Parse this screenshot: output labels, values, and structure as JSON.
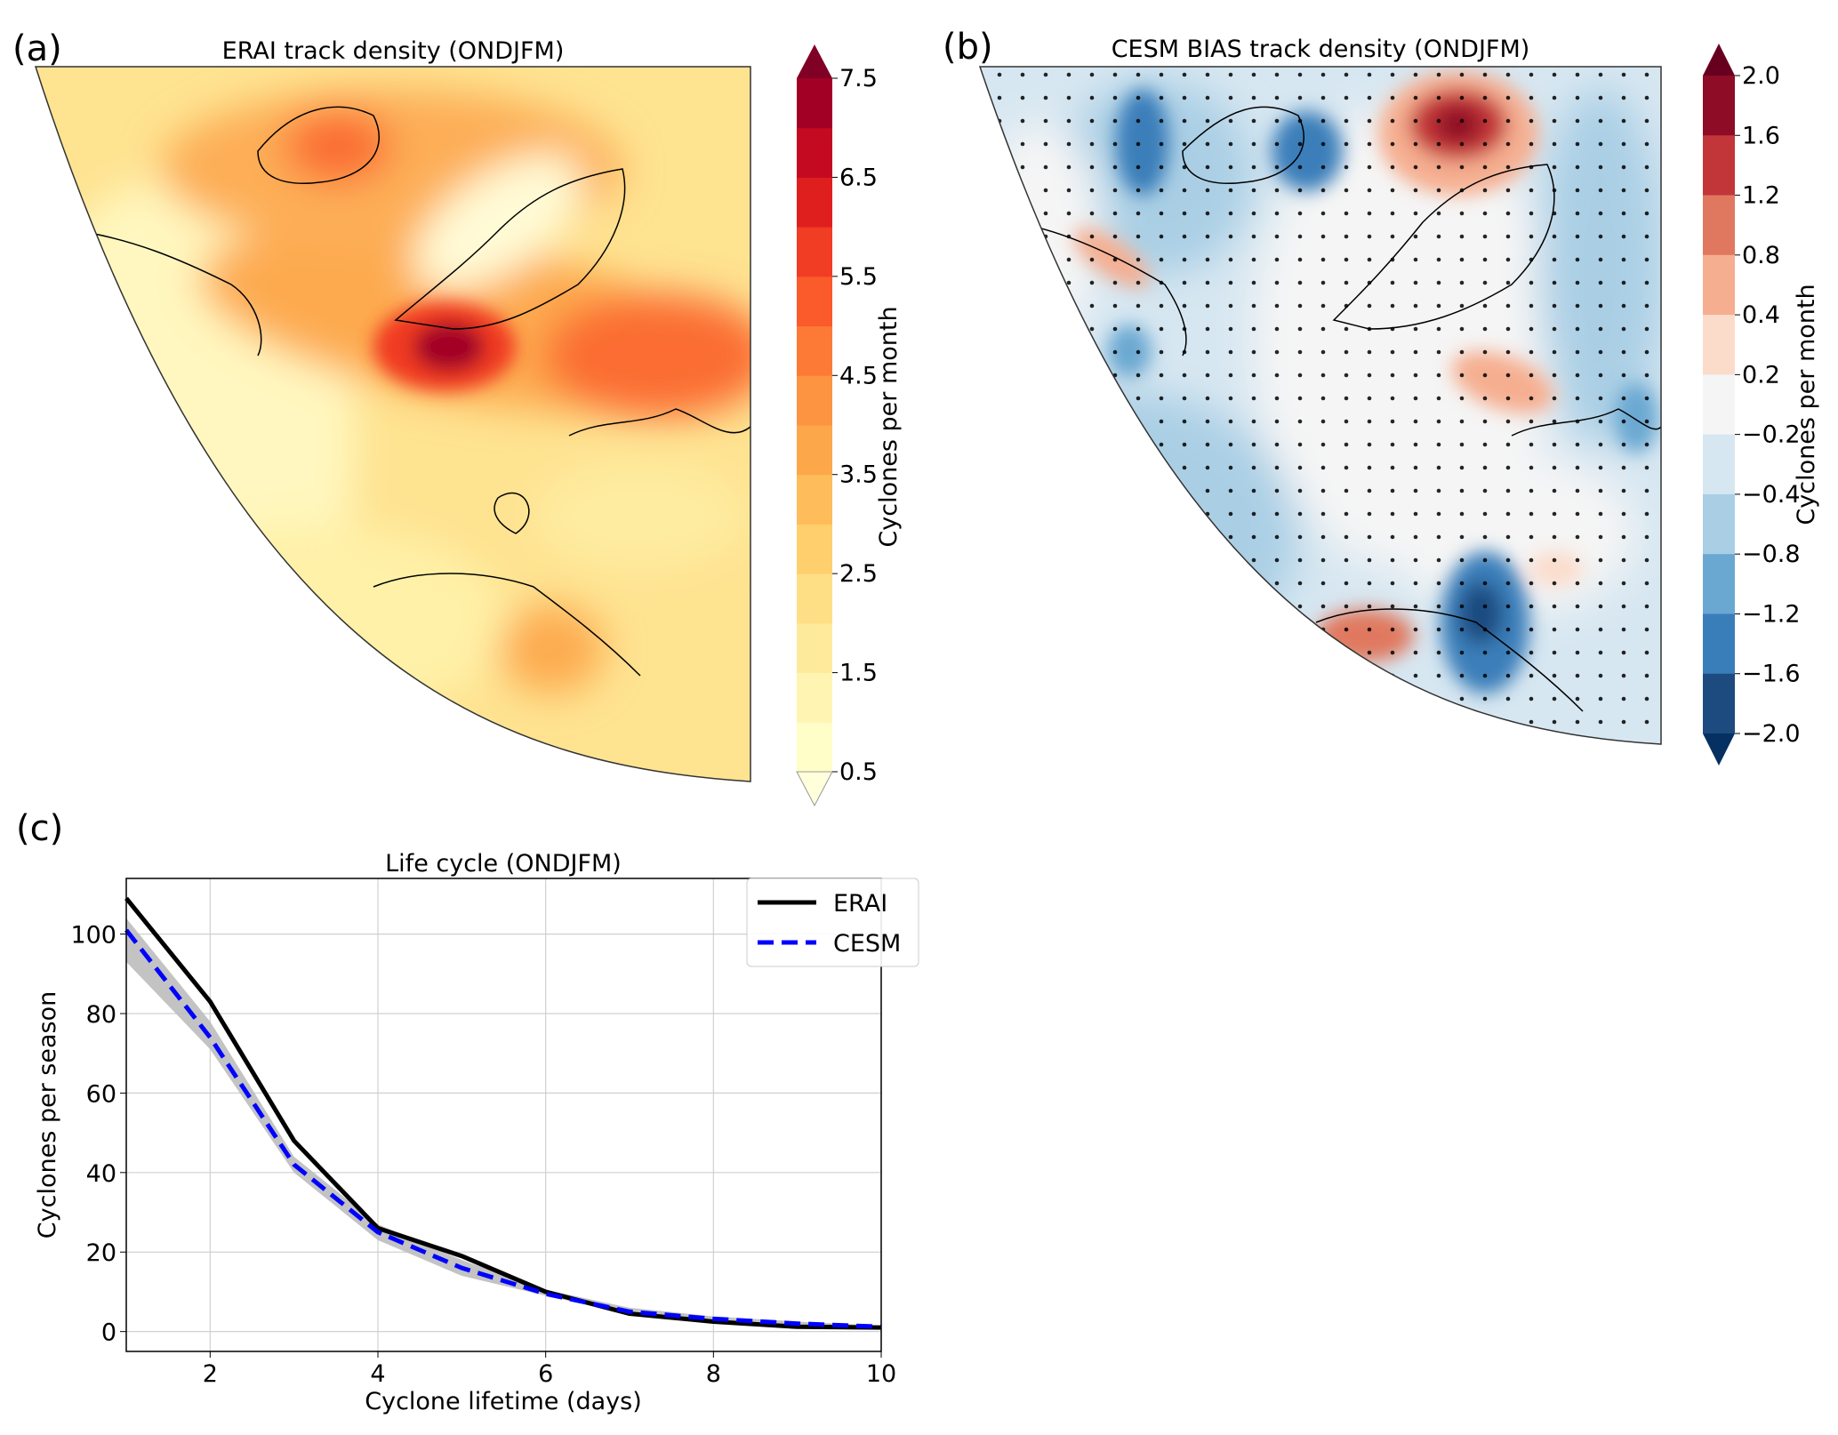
{
  "panel_a": {
    "label": "(a)",
    "title": "ERAI track density (ONDJFM)",
    "colorbar": {
      "label": "Cyclones per month",
      "ticks": [
        "7.5",
        "6.5",
        "5.5",
        "4.5",
        "3.5",
        "2.5",
        "1.5",
        "0.5"
      ],
      "colors_bottom_to_top": [
        "#fffdc8",
        "#fff4b2",
        "#feea9b",
        "#fedf86",
        "#fecf6c",
        "#febc5a",
        "#fda74b",
        "#fd9442",
        "#fc7a35",
        "#fb5a2b",
        "#f13d24",
        "#df1f1e",
        "#c40a21",
        "#a30026"
      ],
      "extend_top": "#800026",
      "extend_bottom": "#ffffdc"
    }
  },
  "panel_b": {
    "label": "(b)",
    "title": "CESM BIAS track density (ONDJFM)",
    "colorbar": {
      "label": "Cyclones per month",
      "ticks": [
        "2.0",
        "1.6",
        "1.2",
        "0.8",
        "0.4",
        "0.2",
        "−0.2",
        "−0.4",
        "−0.8",
        "−1.2",
        "−1.6",
        "−2.0"
      ],
      "colors_top_to_bottom": [
        "#8e0c25",
        "#c23639",
        "#e0785f",
        "#f5ae90",
        "#fbdccb",
        "#f5f5f5",
        "#d7e7f1",
        "#aacfe5",
        "#6ba8d1",
        "#3a7eb9",
        "#1d4b80"
      ],
      "extend_top": "#67001f",
      "extend_bottom": "#053061"
    }
  },
  "panel_c": {
    "label": "(c)"
  },
  "chart_data": {
    "type": "line",
    "title": "Life cycle (ONDJFM)",
    "xlabel": "Cyclone lifetime (days)",
    "ylabel": "Cyclones per season",
    "xlim": [
      1,
      10
    ],
    "ylim": [
      -5,
      114
    ],
    "xticks": [
      2,
      4,
      6,
      8,
      10
    ],
    "yticks": [
      0,
      20,
      40,
      60,
      80,
      100
    ],
    "grid": true,
    "legend_placement": "top-right",
    "x": [
      1,
      2,
      3,
      4,
      5,
      6,
      7,
      8,
      9,
      10
    ],
    "series": [
      {
        "name": "ERAI",
        "color": "#000000",
        "style": "solid",
        "values": [
          109,
          83,
          48,
          26,
          19,
          10,
          4.5,
          2.5,
          1.2,
          1.0
        ]
      },
      {
        "name": "CESM",
        "color": "#0000ff",
        "style": "dashed",
        "values": [
          101,
          74,
          42,
          25,
          16,
          9.5,
          5,
          3.2,
          2.0,
          1.2
        ]
      }
    ],
    "band": {
      "color": "#bdbdbd",
      "lower": [
        93,
        71,
        40,
        23,
        14,
        9,
        4.5,
        2.8,
        1.5,
        0.8
      ],
      "upper": [
        104,
        78,
        44,
        27,
        18,
        10.5,
        6,
        3.8,
        2.5,
        1.5
      ]
    }
  }
}
